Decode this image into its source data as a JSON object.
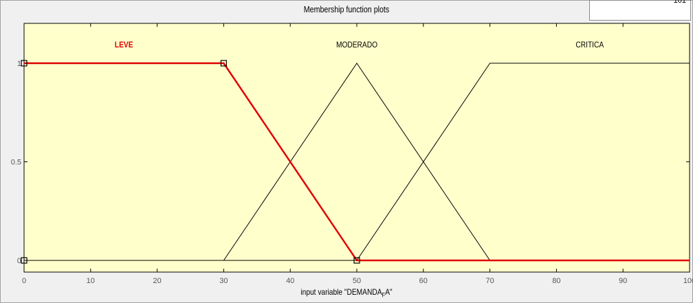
{
  "window": {
    "title": "Membership function plots",
    "range_box_partial_text": "101"
  },
  "chart_data": {
    "type": "line",
    "title": "Membership function plots",
    "xlabel_prefix": "input variable \"DEMANDA",
    "xlabel_sub": "F",
    "xlabel_suffix": "A\"",
    "ylabel": "",
    "xlim": [
      0,
      100
    ],
    "ylim": [
      0,
      1
    ],
    "xticks": [
      0,
      10,
      20,
      30,
      40,
      50,
      60,
      70,
      80,
      90,
      100
    ],
    "yticks": [
      0,
      0.5,
      1
    ],
    "yticklabels": [
      "0",
      "0.5",
      "1"
    ],
    "plot_background": "#ffffcc",
    "grid": false,
    "selected_series": "LEVE",
    "series": [
      {
        "name": "LEVE",
        "color": "#e00000",
        "selected": true,
        "label_x": 15,
        "points": [
          [
            0,
            1
          ],
          [
            30,
            1
          ],
          [
            50,
            0
          ],
          [
            100,
            0
          ]
        ],
        "handles": [
          [
            0,
            1
          ],
          [
            30,
            1
          ],
          [
            50,
            0
          ],
          [
            0,
            0
          ]
        ]
      },
      {
        "name": "MODERADO",
        "color": "#000000",
        "selected": false,
        "label_x": 50,
        "points": [
          [
            0,
            0
          ],
          [
            30,
            0
          ],
          [
            50,
            1
          ],
          [
            70,
            0
          ],
          [
            100,
            0
          ]
        ]
      },
      {
        "name": "CRITICA",
        "color": "#000000",
        "selected": false,
        "label_x": 85,
        "points": [
          [
            0,
            0
          ],
          [
            50,
            0
          ],
          [
            70,
            1
          ],
          [
            100,
            1
          ]
        ]
      }
    ]
  }
}
